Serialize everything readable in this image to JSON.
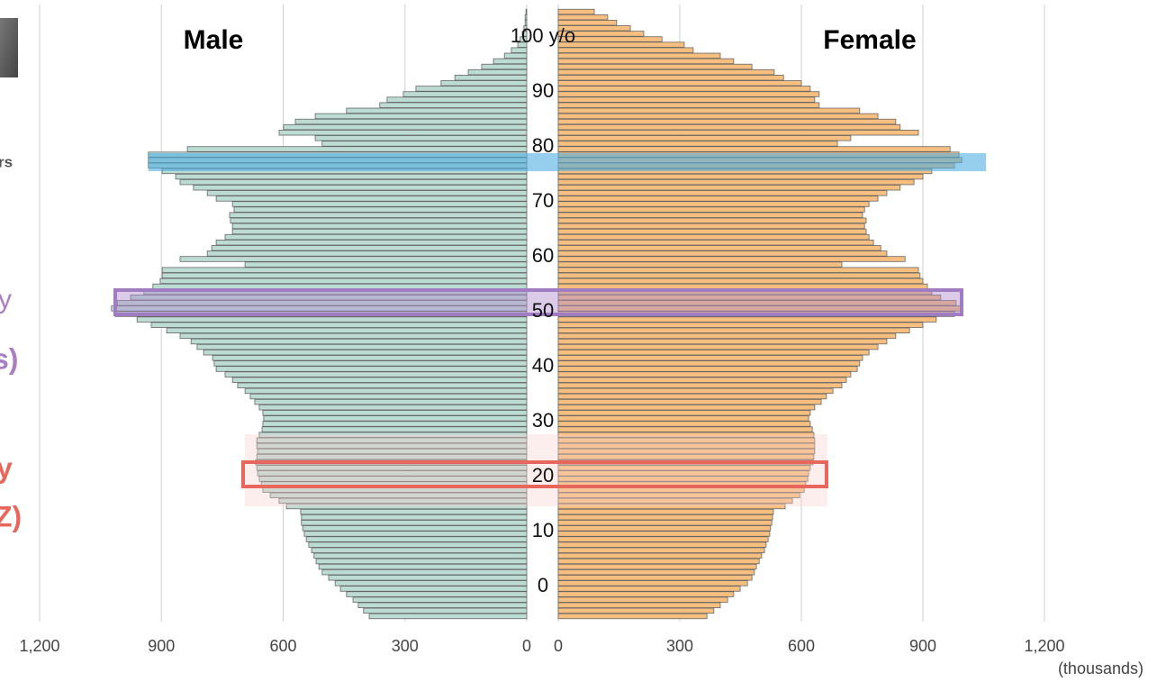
{
  "chart_data": {
    "type": "pyramid",
    "x_label": "(thousands)",
    "y": [
      0,
      1,
      2,
      3,
      4,
      5,
      6,
      7,
      8,
      9,
      10,
      11,
      12,
      13,
      14,
      15,
      16,
      17,
      18,
      19,
      20,
      21,
      22,
      23,
      24,
      25,
      26,
      27,
      28,
      29,
      30,
      31,
      32,
      33,
      34,
      35,
      36,
      37,
      38,
      39,
      40,
      41,
      42,
      43,
      44,
      45,
      46,
      47,
      48,
      49,
      50,
      51,
      52,
      53,
      54,
      55,
      56,
      57,
      58,
      59,
      60,
      61,
      62,
      63,
      64,
      65,
      66,
      67,
      68,
      69,
      70,
      71,
      72,
      73,
      74,
      75,
      76,
      77,
      78,
      79,
      80,
      81,
      82,
      83,
      84,
      85,
      86,
      87,
      88,
      89,
      90,
      91,
      92,
      93,
      94,
      95,
      96,
      97,
      98,
      99,
      100,
      101,
      102,
      103,
      104,
      105,
      106,
      107,
      108,
      109,
      110
    ],
    "series": [
      {
        "name": "Male",
        "color": "#bcdbd3",
        "axis": "x",
        "values": [
          388,
          402,
          415,
          428,
          444,
          459,
          472,
          488,
          504,
          512,
          519,
          524,
          530,
          537,
          543,
          548,
          552,
          555,
          555,
          557,
          592,
          610,
          632,
          650,
          654,
          659,
          663,
          665,
          668,
          665,
          663,
          665,
          665,
          659,
          652,
          650,
          648,
          650,
          659,
          670,
          681,
          694,
          712,
          725,
          743,
          765,
          770,
          774,
          796,
          812,
          827,
          854,
          887,
          925,
          960,
          1014,
          1023,
          1009,
          976,
          943,
          921,
          903,
          898,
          898,
          694,
          854,
          787,
          776,
          765,
          743,
          725,
          725,
          730,
          732,
          721,
          725,
          765,
          787,
          821,
          854,
          865,
          898,
          932,
          932,
          932,
          836,
          504,
          521,
          610,
          599,
          570,
          521,
          444,
          362,
          344,
          304,
          273,
          211,
          177,
          144,
          111,
          82,
          55,
          38,
          22,
          16,
          11,
          7,
          4,
          4,
          2
        ]
      },
      {
        "name": "Female",
        "color": "#f6bf7f",
        "axis": "x2",
        "values": [
          367,
          384,
          400,
          418,
          433,
          449,
          467,
          478,
          484,
          489,
          496,
          502,
          509,
          513,
          518,
          522,
          524,
          527,
          529,
          531,
          560,
          578,
          596,
          607,
          611,
          616,
          618,
          622,
          629,
          631,
          633,
          633,
          633,
          631,
          627,
          622,
          618,
          622,
          633,
          649,
          662,
          678,
          700,
          711,
          722,
          738,
          744,
          751,
          767,
          789,
          811,
          833,
          867,
          900,
          933,
          978,
          996,
          982,
          944,
          922,
          911,
          900,
          893,
          889,
          700,
          856,
          811,
          796,
          778,
          767,
          760,
          756,
          760,
          751,
          756,
          767,
          789,
          811,
          844,
          878,
          900,
          922,
          978,
          996,
          989,
          967,
          689,
          722,
          889,
          844,
          833,
          789,
          744,
          644,
          633,
          644,
          622,
          600,
          556,
          533,
          478,
          433,
          400,
          333,
          311,
          256,
          211,
          178,
          144,
          122,
          89
        ]
      }
    ],
    "xlim": [
      0,
      1200
    ],
    "xticks": [
      {
        "value": 1200,
        "label": "1,200"
      },
      900,
      600,
      300,
      0
    ],
    "x2lim": [
      0,
      1200
    ],
    "x2ticks": [
      0,
      300,
      600,
      900,
      {
        "value": 1200,
        "label": "1,200"
      }
    ],
    "ylim": [
      -0.5,
      110.5
    ],
    "yticks": [
      0,
      10,
      20,
      30,
      40,
      50,
      60,
      70,
      80,
      90,
      {
        "value": 100,
        "label": "100 y/o"
      }
    ],
    "grid": true,
    "annotations": [
      {
        "text": "rs",
        "color": "#555555"
      },
      {
        "text": "y",
        "color": "#a77fc2"
      },
      {
        "text": "s)",
        "color": "#a77fc2"
      },
      {
        "text": "y",
        "color": "#e8675c"
      },
      {
        "text": "Z)",
        "color": "#e8675c"
      }
    ]
  }
}
